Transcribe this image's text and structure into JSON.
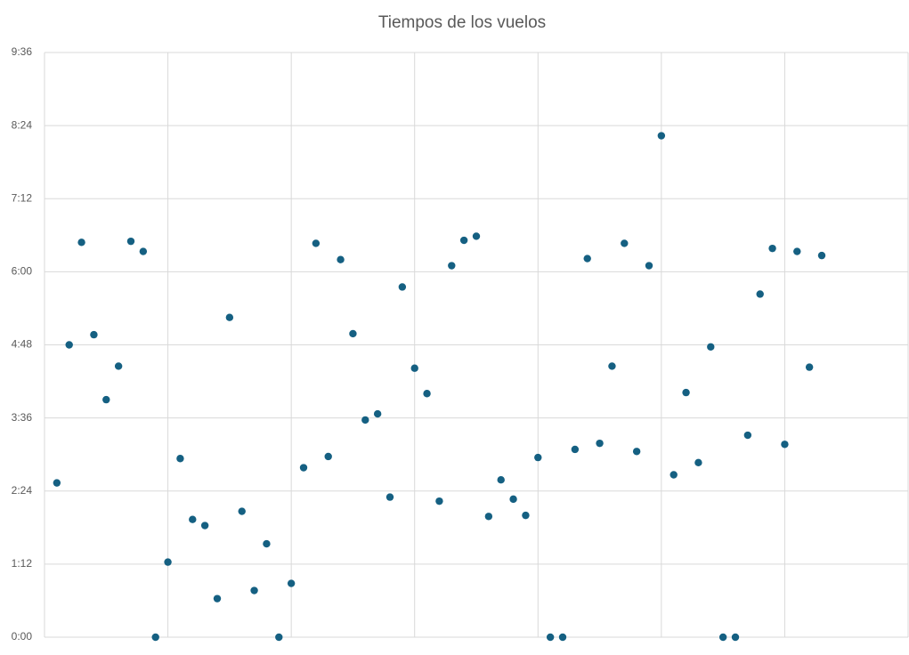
{
  "chart_data": {
    "type": "scatter",
    "title": "Tiempos de los vuelos",
    "x": [
      1,
      2,
      3,
      4,
      5,
      6,
      7,
      8,
      9,
      10,
      11,
      12,
      13,
      14,
      15,
      16,
      17,
      18,
      19,
      20,
      21,
      22,
      23,
      24,
      25,
      26,
      27,
      28,
      29,
      30,
      31,
      32,
      33,
      34,
      35,
      36,
      37,
      38,
      39,
      40,
      41,
      42,
      43,
      44,
      45,
      46,
      47,
      48,
      49,
      50,
      51,
      52,
      53,
      54,
      55,
      56,
      57,
      58,
      59,
      60,
      61,
      62,
      63
    ],
    "series": [
      {
        "color": "#156082",
        "values": [
          152,
          288,
          389,
          298,
          234,
          267,
          390,
          380,
          0,
          74,
          176,
          116,
          110,
          38,
          315,
          124,
          46,
          92,
          0,
          53,
          167,
          388,
          178,
          372,
          299,
          214,
          220,
          138,
          345,
          265,
          240,
          134,
          366,
          391,
          395,
          119,
          155,
          136,
          120,
          177,
          0,
          0,
          185,
          373,
          191,
          267,
          388,
          183,
          366,
          494,
          160,
          241,
          172,
          286,
          0,
          0,
          199,
          338,
          383,
          190,
          380,
          266,
          376
        ]
      }
    ],
    "xlim": [
      0,
      70
    ],
    "xticks": [
      0,
      10,
      20,
      30,
      40,
      50,
      60,
      70
    ],
    "ylim": [
      0,
      576
    ],
    "yticks": [
      {
        "value": 0,
        "label": "0:00"
      },
      {
        "value": 72,
        "label": "1:12"
      },
      {
        "value": 144,
        "label": "2:24"
      },
      {
        "value": 216,
        "label": "3:36"
      },
      {
        "value": 288,
        "label": "4:48"
      },
      {
        "value": 360,
        "label": "6:00"
      },
      {
        "value": 432,
        "label": "7:12"
      },
      {
        "value": 504,
        "label": "8:24"
      },
      {
        "value": 576,
        "label": "9:36"
      }
    ],
    "grid": true
  }
}
